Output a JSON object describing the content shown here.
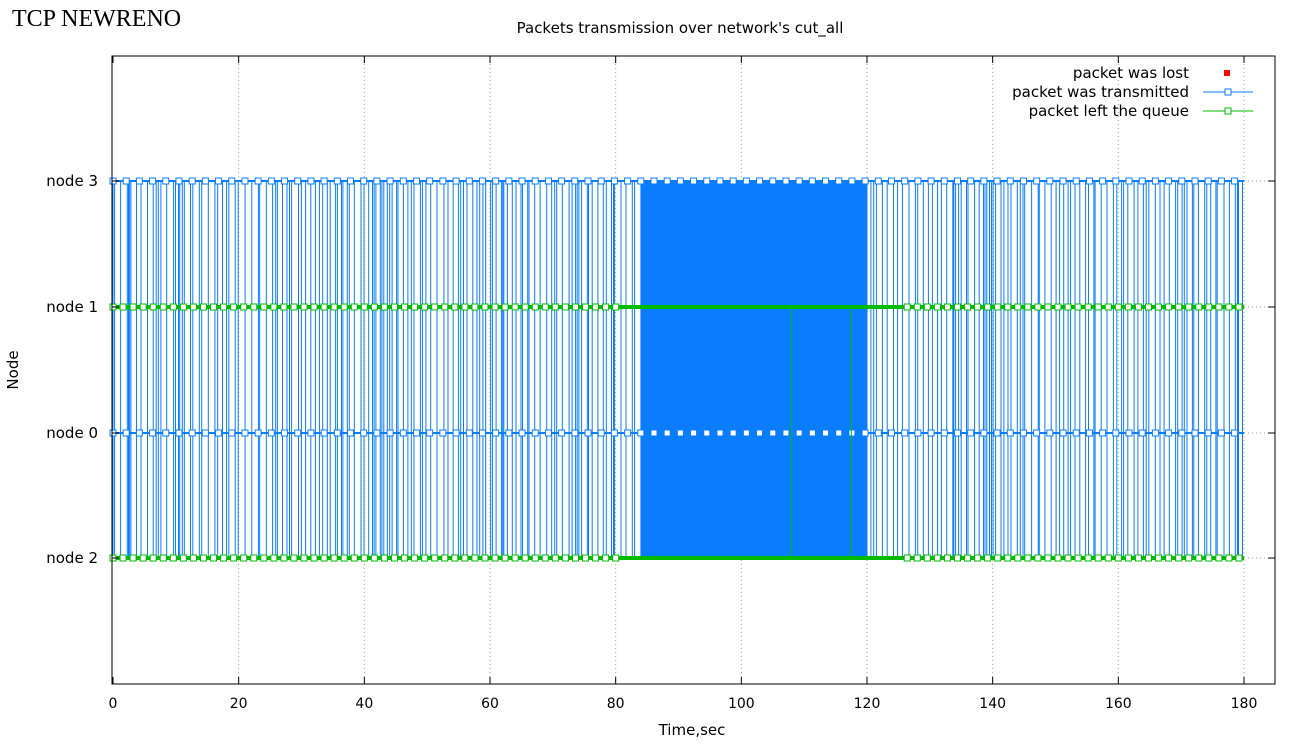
{
  "header": {
    "label": "TCP NEWRENO"
  },
  "chart_data": {
    "type": "line",
    "title": "Packets transmission over network's cut_all",
    "xlabel": "Time,sec",
    "ylabel": "Node",
    "xlim": [
      0,
      185
    ],
    "x_ticks": [
      0,
      20,
      40,
      60,
      80,
      100,
      120,
      140,
      160,
      180
    ],
    "y_categories": [
      "node 2",
      "node 0",
      "node 1",
      "node 3"
    ],
    "grid": true,
    "legend_position": "top-right",
    "legend": [
      {
        "label": "packet was lost",
        "color": "#ff0000",
        "style": "filled-square-points"
      },
      {
        "label": "packet was transmitted",
        "color": "#0a7dff",
        "style": "line-with-open-squares"
      },
      {
        "label": "packet left the queue",
        "color": "#00bb00",
        "style": "line-with-open-squares"
      }
    ],
    "series": [
      {
        "name": "packet was transmitted",
        "color": "#0a7dff",
        "description_of_data": "Vertical transitions between node 3 and node 2 across the whole run; dense, nearly continuous transmission between about 84 s and 120 s",
        "time_range": [
          0,
          180
        ],
        "dense_interval": [
          84,
          120
        ],
        "levels": [
          "node 3",
          "node 1",
          "node 0",
          "node 2"
        ]
      },
      {
        "name": "packet left the queue",
        "color": "#00bb00",
        "time_range": [
          0,
          180
        ],
        "levels": [
          "node 1",
          "node 2"
        ],
        "vertical_events": [
          108,
          117.5
        ]
      },
      {
        "name": "packet was lost",
        "color": "#ff0000",
        "values": []
      }
    ]
  }
}
